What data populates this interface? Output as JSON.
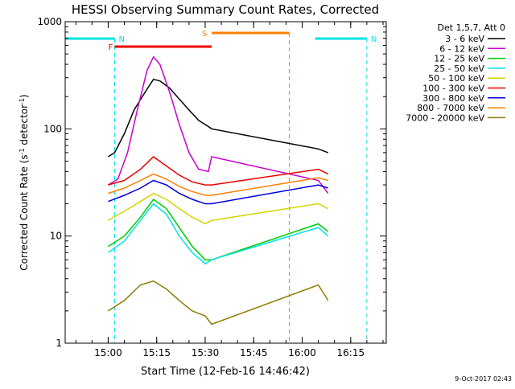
{
  "chart_data": {
    "type": "line",
    "title": "HESSI Observing Summary Count Rates, Corrected",
    "xlabel": "Start Time (12-Feb-16 14:46:42)",
    "ylabel_main": "Corrected Count Rate (s",
    "ylabel_sup1": "-1",
    "ylabel_mid": " detector",
    "ylabel_sup2": "-1",
    "ylabel_end": ")",
    "yscale": "log",
    "ylim": [
      1,
      1000
    ],
    "xlim_minutes": [
      "14:46:42",
      "16:26"
    ],
    "y_ticks": [
      "1",
      "10",
      "100",
      "1000"
    ],
    "x_ticks": [
      "15:00",
      "15:15",
      "15:30",
      "15:45",
      "16:00",
      "16:15"
    ],
    "legend_header": "Det 1,5,7, Att 0",
    "series": [
      {
        "name": "3 - 6 keV",
        "color": "#000000",
        "x": [
          "15:00",
          "15:02",
          "15:05",
          "15:08",
          "15:11",
          "15:14",
          "15:16",
          "15:19",
          "15:22",
          "15:25",
          "15:28",
          "15:31",
          "15:32",
          "16:05",
          "16:08"
        ],
        "values": [
          55,
          60,
          90,
          150,
          210,
          290,
          280,
          240,
          190,
          150,
          120,
          105,
          100,
          65,
          60
        ]
      },
      {
        "name": "6 - 12 keV",
        "color": "#cc00cc",
        "x": [
          "15:00",
          "15:03",
          "15:06",
          "15:09",
          "15:12",
          "15:14",
          "15:16",
          "15:19",
          "15:22",
          "15:25",
          "15:28",
          "15:31",
          "15:32",
          "16:05",
          "16:08"
        ],
        "values": [
          30,
          34,
          60,
          150,
          350,
          470,
          400,
          220,
          110,
          60,
          42,
          40,
          55,
          33,
          25
        ]
      },
      {
        "name": "12 - 25 keV",
        "color": "#00cc00",
        "x": [
          "15:00",
          "15:05",
          "15:10",
          "15:14",
          "15:18",
          "15:22",
          "15:26",
          "15:30",
          "15:32",
          "16:05",
          "16:08"
        ],
        "values": [
          8,
          10,
          15,
          22,
          18,
          12,
          8,
          6,
          6,
          13,
          11
        ]
      },
      {
        "name": "25 - 50 keV",
        "color": "#00e5e5",
        "x": [
          "15:00",
          "15:05",
          "15:10",
          "15:14",
          "15:18",
          "15:22",
          "15:26",
          "15:30",
          "15:32",
          "16:05",
          "16:08"
        ],
        "values": [
          7,
          9,
          14,
          20,
          16,
          10,
          7,
          5.5,
          6,
          12,
          10
        ]
      },
      {
        "name": "50 - 100 keV",
        "color": "#d4d400",
        "x": [
          "15:00",
          "15:05",
          "15:10",
          "15:14",
          "15:18",
          "15:22",
          "15:26",
          "15:30",
          "15:32",
          "16:05",
          "16:08"
        ],
        "values": [
          14,
          17,
          21,
          25,
          22,
          18,
          15,
          13,
          14,
          20,
          18
        ]
      },
      {
        "name": "100 - 300 keV",
        "color": "#ee0000",
        "x": [
          "15:00",
          "15:05",
          "15:10",
          "15:14",
          "15:18",
          "15:22",
          "15:26",
          "15:30",
          "15:32",
          "16:05",
          "16:08"
        ],
        "values": [
          30,
          33,
          42,
          55,
          45,
          37,
          32,
          30,
          30,
          42,
          38
        ]
      },
      {
        "name": "300 - 800 keV",
        "color": "#0000dd",
        "x": [
          "15:00",
          "15:05",
          "15:10",
          "15:14",
          "15:18",
          "15:22",
          "15:26",
          "15:30",
          "15:32",
          "16:05",
          "16:08"
        ],
        "values": [
          21,
          24,
          28,
          33,
          30,
          25,
          22,
          20,
          20,
          30,
          28
        ]
      },
      {
        "name": "800 - 7000 keV",
        "color": "#ff8000",
        "x": [
          "15:00",
          "15:05",
          "15:10",
          "15:14",
          "15:18",
          "15:22",
          "15:26",
          "15:30",
          "15:32",
          "16:05",
          "16:08"
        ],
        "values": [
          25,
          28,
          33,
          38,
          34,
          29,
          26,
          24,
          24,
          35,
          33
        ]
      },
      {
        "name": "7000 - 20000 keV",
        "color": "#8a7d00",
        "x": [
          "15:00",
          "15:05",
          "15:10",
          "15:14",
          "15:18",
          "15:22",
          "15:26",
          "15:30",
          "15:32",
          "16:05",
          "16:08"
        ],
        "values": [
          2,
          2.5,
          3.5,
          3.8,
          3.2,
          2.5,
          2,
          1.8,
          1.5,
          3.5,
          2.5
        ]
      }
    ],
    "flags": [
      {
        "label": "N",
        "color": "#00e5e5",
        "from": "14:46:42",
        "to": "15:02"
      },
      {
        "label": "N",
        "color": "#00e5e5",
        "from": "16:04",
        "to": "16:20"
      },
      {
        "label": "F",
        "color": "#ee0000",
        "from": "15:02",
        "to": "15:32"
      },
      {
        "label": "S",
        "color": "#ff8000",
        "from": "15:32",
        "to": "15:56"
      }
    ],
    "timestamp": "9-Oct-2017 02:43"
  }
}
